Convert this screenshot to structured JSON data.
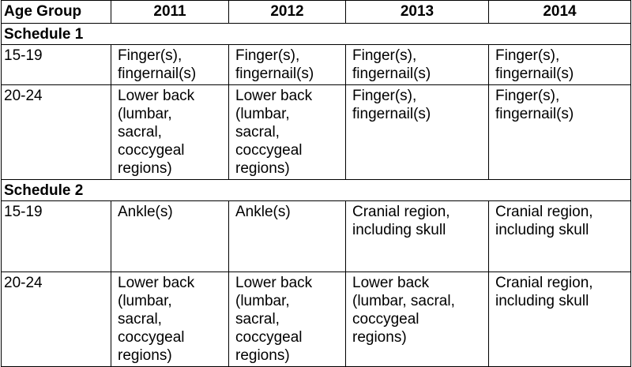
{
  "table": {
    "headers": [
      "Age Group",
      "2011",
      "2012",
      "2013",
      "2014"
    ],
    "sections": [
      {
        "title": "Schedule 1",
        "rows": [
          {
            "age": "15-19",
            "cells": [
              "Finger(s),\nfingernail(s)",
              "Finger(s),\nfingernail(s)",
              "Finger(s),\nfingernail(s)",
              "Finger(s),\nfingernail(s)"
            ]
          },
          {
            "age": "20-24",
            "cells": [
              "Lower back\n(lumbar,\nsacral,\ncoccygeal\nregions)",
              "Lower back\n(lumbar,\nsacral,\ncoccygeal\nregions)",
              "Finger(s),\nfingernail(s)",
              "Finger(s),\nfingernail(s)"
            ]
          }
        ]
      },
      {
        "title": "Schedule 2",
        "rows": [
          {
            "age": "15-19",
            "cells": [
              "Ankle(s)",
              "Ankle(s)",
              "Cranial region,\nincluding skull",
              "Cranial region,\nincluding skull"
            ]
          },
          {
            "age": "20-24",
            "cells": [
              "Lower back\n(lumbar,\nsacral,\ncoccygeal\nregions)",
              "Lower back\n(lumbar,\nsacral,\ncoccygeal\nregions)",
              "Lower back\n(lumbar, sacral,\ncoccygeal\nregions)",
              "Cranial region,\nincluding skull"
            ]
          }
        ]
      }
    ]
  }
}
